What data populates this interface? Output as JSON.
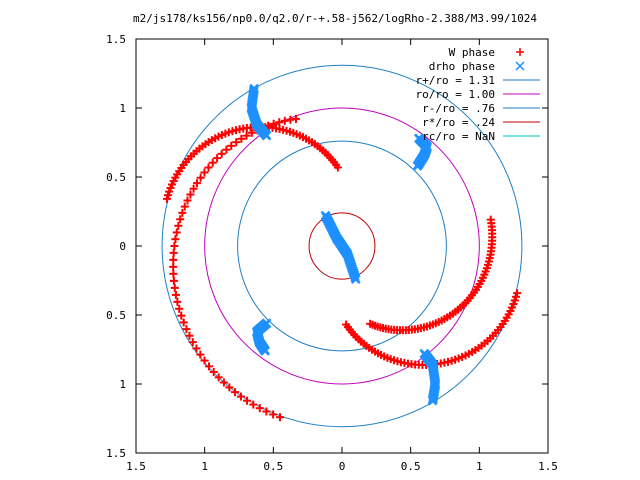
{
  "chart_data": {
    "type": "scatter",
    "title": "m2/js178/ks156/np0.0/q2.0/r-+.58-j562/logRho-2.388/M3.99/1024",
    "xlabel": "",
    "ylabel": "",
    "xlim": [
      -1.5,
      1.5
    ],
    "ylim": [
      -1.5,
      1.5
    ],
    "x_tick_labels": [
      "1.5",
      "1",
      "0.5",
      "0",
      "0.5",
      "1",
      "1.5"
    ],
    "x_tick_values": [
      -1.5,
      -1,
      -0.5,
      0,
      0.5,
      1,
      1.5
    ],
    "y_tick_labels": [
      "1.5",
      "1",
      "0.5",
      "0",
      "0.5",
      "1",
      "1.5"
    ],
    "y_tick_values": [
      1.5,
      1,
      0.5,
      0,
      -0.5,
      -1,
      -1.5
    ],
    "grid": false,
    "legend_position": "top-right",
    "legend": [
      {
        "label": "W phase",
        "symbol": "plus",
        "color": "#ff0000"
      },
      {
        "label": "drho phase",
        "symbol": "cross",
        "color": "#1e90ff"
      },
      {
        "label": "r+/ro = 1.31",
        "symbol": "line",
        "color": "#1e7fc4"
      },
      {
        "label": "ro/ro = 1.00",
        "symbol": "line",
        "color": "#c000c0"
      },
      {
        "label": "r-/ro = .76",
        "symbol": "line",
        "color": "#1e7fc4"
      },
      {
        "label": "r*/ro = .24",
        "symbol": "line",
        "color": "#c00000"
      },
      {
        "label": "rc/ro = NaN",
        "symbol": "line",
        "color": "#00c0c0"
      }
    ],
    "circles": [
      {
        "radius": 1.31,
        "color": "#1e7fc4"
      },
      {
        "radius": 1.0,
        "color": "#c000c0"
      },
      {
        "radius": 0.76,
        "color": "#1e7fc4"
      },
      {
        "radius": 0.24,
        "color": "#c00000"
      }
    ],
    "w_phase_arms": [
      {
        "r": [
          0.57,
          1.32
        ],
        "a0": 93,
        "a1": 165,
        "color": "#ff0000"
      },
      {
        "r": [
          0.57,
          1.32
        ],
        "a0": 273,
        "a1": 345,
        "color": "#ff0000"
      },
      {
        "r": [
          0.98,
          1.32
        ],
        "a0": 110,
        "a1": 250,
        "color": "#ff0000"
      },
      {
        "r": [
          0.6,
          1.1
        ],
        "a0": 290,
        "a1": 10,
        "color": "#ff0000"
      }
    ],
    "drho_phase_arms": [
      {
        "x": [
          -0.64,
          -0.66,
          -0.62,
          -0.55
        ],
        "y": [
          1.14,
          1.0,
          0.88,
          0.8
        ],
        "color": "#1e90ff"
      },
      {
        "x": [
          0.55,
          0.6,
          0.62,
          0.56
        ],
        "y": [
          0.58,
          0.66,
          0.72,
          0.78
        ],
        "color": "#1e90ff"
      },
      {
        "x": [
          -0.55,
          -0.62,
          -0.6,
          -0.56
        ],
        "y": [
          -0.56,
          -0.62,
          -0.7,
          -0.76
        ],
        "color": "#1e90ff"
      },
      {
        "x": [
          0.6,
          0.66,
          0.68,
          0.66
        ],
        "y": [
          -0.78,
          -0.86,
          -1.0,
          -1.12
        ],
        "color": "#1e90ff"
      },
      {
        "x": [
          -0.12,
          -0.04,
          0.04,
          0.1
        ],
        "y": [
          0.22,
          0.06,
          -0.06,
          -0.24
        ],
        "color": "#1e90ff"
      }
    ]
  }
}
